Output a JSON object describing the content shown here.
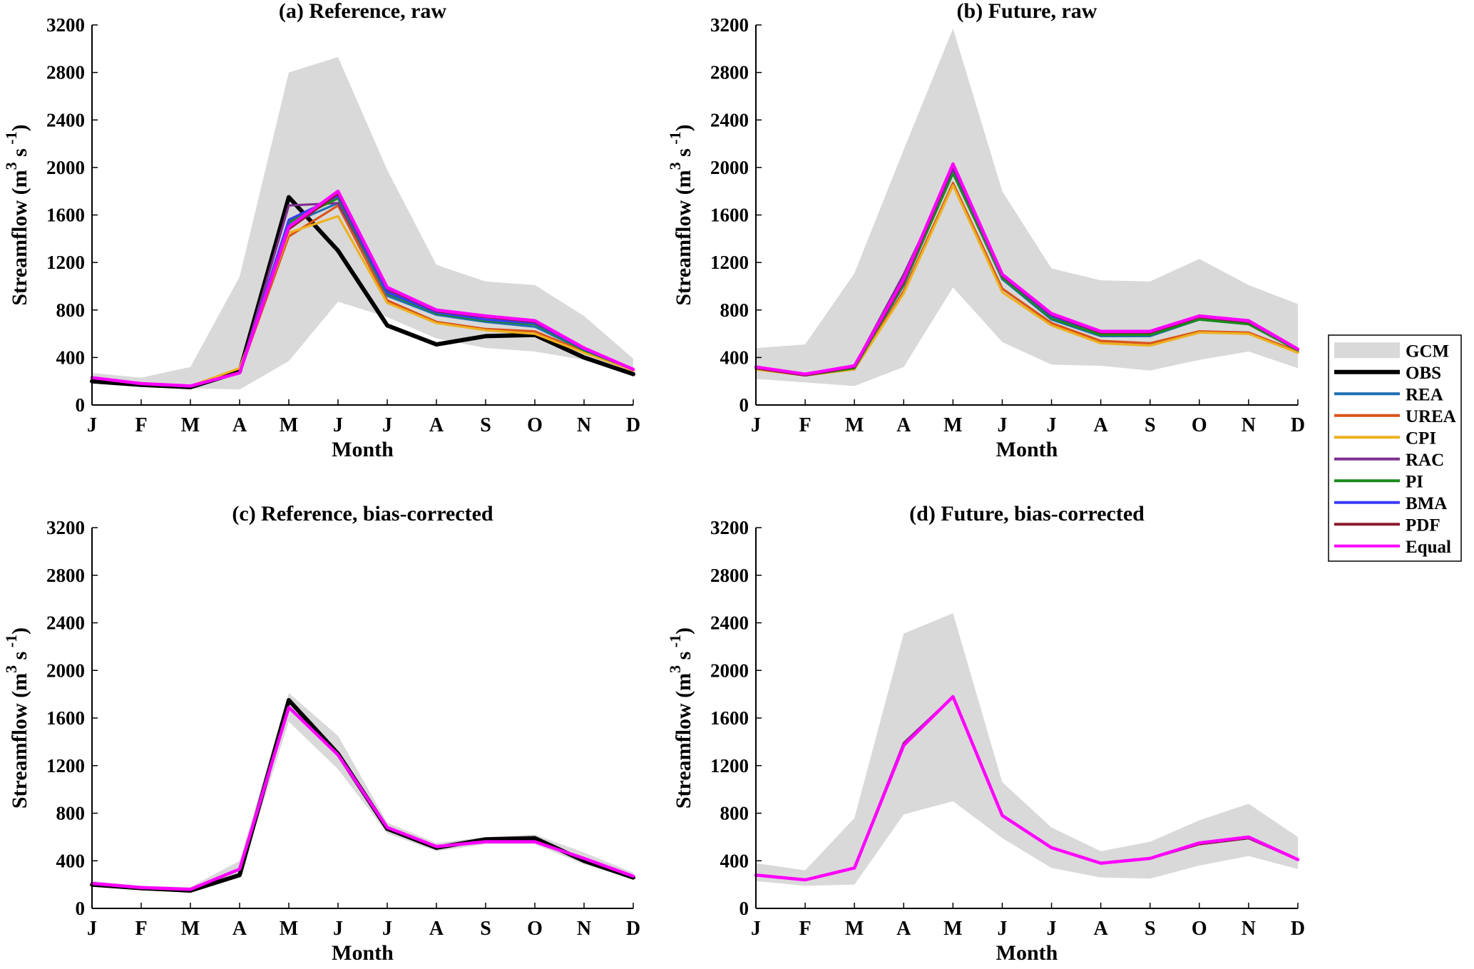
{
  "chart_data": [
    {
      "type": "line",
      "title": "(a) Reference, raw",
      "xlabel": "Month",
      "ylabel": "Streamflow",
      "yunit": {
        "base": "m",
        "exp1": "3",
        "mid": "s",
        "exp2": "-1"
      },
      "categories": [
        "J",
        "F",
        "M",
        "A",
        "M",
        "J",
        "J",
        "A",
        "S",
        "O",
        "N",
        "D"
      ],
      "ylim": [
        0,
        3200
      ],
      "yticks": [
        0,
        400,
        800,
        1200,
        1600,
        2000,
        2400,
        2800,
        3200
      ],
      "gcm_band": {
        "name": "GCM",
        "upper": [
          270,
          230,
          320,
          1080,
          2800,
          2930,
          1980,
          1180,
          1040,
          1010,
          750,
          390
        ],
        "lower": [
          190,
          170,
          140,
          130,
          370,
          870,
          740,
          560,
          480,
          450,
          380,
          250
        ]
      },
      "series": [
        {
          "name": "OBS",
          "values": [
            200,
            170,
            150,
            280,
            1750,
            1300,
            670,
            510,
            580,
            590,
            400,
            260
          ]
        },
        {
          "name": "REA",
          "values": [
            230,
            180,
            160,
            270,
            1520,
            1700,
            920,
            760,
            700,
            660,
            460,
            290
          ]
        },
        {
          "name": "UREA",
          "values": [
            230,
            180,
            160,
            270,
            1420,
            1680,
            880,
            700,
            640,
            620,
            450,
            290
          ]
        },
        {
          "name": "CPI",
          "values": [
            230,
            180,
            160,
            310,
            1450,
            1590,
            860,
            690,
            630,
            600,
            440,
            290
          ]
        },
        {
          "name": "RAC",
          "values": [
            230,
            180,
            160,
            270,
            1680,
            1700,
            960,
            780,
            720,
            690,
            470,
            300
          ]
        },
        {
          "name": "PI",
          "values": [
            230,
            180,
            160,
            270,
            1540,
            1740,
            940,
            770,
            710,
            680,
            460,
            300
          ]
        },
        {
          "name": "BMA",
          "values": [
            230,
            180,
            160,
            270,
            1560,
            1760,
            950,
            780,
            720,
            690,
            470,
            300
          ]
        },
        {
          "name": "PDF",
          "values": [
            230,
            180,
            160,
            270,
            1480,
            1780,
            980,
            790,
            740,
            700,
            480,
            300
          ]
        },
        {
          "name": "Equal",
          "values": [
            230,
            180,
            160,
            270,
            1500,
            1800,
            990,
            800,
            750,
            710,
            480,
            300
          ]
        }
      ]
    },
    {
      "type": "line",
      "title": "(b) Future, raw",
      "xlabel": "Month",
      "ylabel": "Streamflow",
      "yunit": {
        "base": "m",
        "exp1": "3",
        "mid": "s",
        "exp2": "-1"
      },
      "categories": [
        "J",
        "F",
        "M",
        "A",
        "M",
        "J",
        "J",
        "A",
        "S",
        "O",
        "N",
        "D"
      ],
      "ylim": [
        0,
        3200
      ],
      "yticks": [
        0,
        400,
        800,
        1200,
        1600,
        2000,
        2400,
        2800,
        3200
      ],
      "gcm_band": {
        "name": "GCM",
        "upper": [
          480,
          510,
          1110,
          2150,
          3170,
          1800,
          1150,
          1050,
          1040,
          1230,
          1010,
          850
        ],
        "lower": [
          220,
          190,
          160,
          320,
          990,
          530,
          340,
          330,
          290,
          380,
          450,
          310
        ]
      },
      "series": [
        {
          "name": "OBS",
          "values": [
            null,
            null,
            null,
            null,
            null,
            null,
            null,
            null,
            null,
            null,
            null,
            null
          ]
        },
        {
          "name": "REA",
          "values": [
            310,
            250,
            310,
            1010,
            1960,
            1060,
            720,
            580,
            580,
            720,
            680,
            460
          ]
        },
        {
          "name": "UREA",
          "values": [
            300,
            250,
            300,
            960,
            1870,
            980,
            690,
            540,
            520,
            620,
            610,
            450
          ]
        },
        {
          "name": "CPI",
          "values": [
            300,
            250,
            300,
            940,
            1850,
            950,
            670,
            520,
            500,
            610,
            600,
            440
          ]
        },
        {
          "name": "RAC",
          "values": [
            310,
            250,
            330,
            1100,
            1980,
            1080,
            750,
            600,
            600,
            730,
            690,
            470
          ]
        },
        {
          "name": "PI",
          "values": [
            310,
            250,
            310,
            1020,
            1950,
            1070,
            730,
            590,
            590,
            720,
            680,
            460
          ]
        },
        {
          "name": "BMA",
          "values": [
            310,
            250,
            320,
            1050,
            2000,
            1090,
            750,
            610,
            610,
            740,
            700,
            470
          ]
        },
        {
          "name": "PDF",
          "values": [
            310,
            250,
            320,
            1040,
            2010,
            1090,
            760,
            610,
            610,
            740,
            700,
            470
          ]
        },
        {
          "name": "Equal",
          "values": [
            320,
            260,
            330,
            1060,
            2030,
            1100,
            770,
            620,
            620,
            750,
            710,
            470
          ]
        }
      ]
    },
    {
      "type": "line",
      "title": "(c) Reference, bias-corrected",
      "xlabel": "Month",
      "ylabel": "Streamflow",
      "yunit": {
        "base": "m",
        "exp1": "3",
        "mid": "s",
        "exp2": "-1"
      },
      "categories": [
        "J",
        "F",
        "M",
        "A",
        "M",
        "J",
        "J",
        "A",
        "S",
        "O",
        "N",
        "D"
      ],
      "ylim": [
        0,
        3200
      ],
      "yticks": [
        0,
        400,
        800,
        1200,
        1600,
        2000,
        2400,
        2800,
        3200
      ],
      "gcm_band": {
        "name": "GCM",
        "upper": [
          230,
          190,
          180,
          400,
          1810,
          1450,
          720,
          550,
          600,
          620,
          470,
          300
        ],
        "lower": [
          180,
          160,
          140,
          260,
          1570,
          1170,
          630,
          480,
          540,
          540,
          370,
          250
        ]
      },
      "series": [
        {
          "name": "OBS",
          "values": [
            200,
            170,
            150,
            280,
            1750,
            1300,
            670,
            510,
            580,
            590,
            400,
            260
          ]
        },
        {
          "name": "REA",
          "values": [
            210,
            175,
            160,
            330,
            1690,
            1290,
            680,
            520,
            560,
            560,
            420,
            270
          ]
        },
        {
          "name": "UREA",
          "values": [
            210,
            175,
            160,
            330,
            1690,
            1290,
            680,
            520,
            560,
            560,
            420,
            270
          ]
        },
        {
          "name": "CPI",
          "values": [
            210,
            175,
            160,
            330,
            1690,
            1290,
            680,
            520,
            560,
            560,
            420,
            270
          ]
        },
        {
          "name": "RAC",
          "values": [
            210,
            175,
            160,
            330,
            1690,
            1290,
            680,
            520,
            560,
            560,
            420,
            270
          ]
        },
        {
          "name": "PI",
          "values": [
            210,
            175,
            160,
            330,
            1690,
            1290,
            680,
            520,
            560,
            560,
            420,
            270
          ]
        },
        {
          "name": "BMA",
          "values": [
            210,
            175,
            160,
            330,
            1690,
            1290,
            680,
            520,
            560,
            560,
            420,
            270
          ]
        },
        {
          "name": "PDF",
          "values": [
            210,
            175,
            160,
            330,
            1690,
            1290,
            680,
            520,
            560,
            560,
            420,
            270
          ]
        },
        {
          "name": "Equal",
          "values": [
            210,
            175,
            160,
            330,
            1690,
            1290,
            680,
            520,
            560,
            560,
            420,
            270
          ]
        }
      ]
    },
    {
      "type": "line",
      "title": "(d) Future, bias-corrected",
      "xlabel": "Month",
      "ylabel": "Streamflow",
      "yunit": {
        "base": "m",
        "exp1": "3",
        "mid": "s",
        "exp2": "-1"
      },
      "categories": [
        "J",
        "F",
        "M",
        "A",
        "M",
        "J",
        "J",
        "A",
        "S",
        "O",
        "N",
        "D"
      ],
      "ylim": [
        0,
        3200
      ],
      "yticks": [
        0,
        400,
        800,
        1200,
        1600,
        2000,
        2400,
        2800,
        3200
      ],
      "gcm_band": {
        "name": "GCM",
        "upper": [
          380,
          320,
          760,
          2310,
          2480,
          1060,
          680,
          480,
          560,
          740,
          880,
          600
        ],
        "lower": [
          230,
          190,
          200,
          790,
          900,
          590,
          340,
          260,
          250,
          360,
          440,
          330
        ]
      },
      "series": [
        {
          "name": "OBS",
          "values": [
            null,
            null,
            null,
            null,
            null,
            null,
            null,
            null,
            null,
            null,
            null,
            null
          ]
        },
        {
          "name": "REA",
          "values": [
            280,
            240,
            340,
            1380,
            1780,
            780,
            510,
            380,
            420,
            540,
            590,
            410
          ]
        },
        {
          "name": "UREA",
          "values": [
            280,
            240,
            340,
            1380,
            1780,
            780,
            510,
            380,
            420,
            540,
            590,
            410
          ]
        },
        {
          "name": "CPI",
          "values": [
            280,
            240,
            340,
            1380,
            1780,
            780,
            510,
            380,
            420,
            540,
            590,
            410
          ]
        },
        {
          "name": "RAC",
          "values": [
            280,
            240,
            340,
            1390,
            1780,
            780,
            510,
            380,
            420,
            550,
            600,
            410
          ]
        },
        {
          "name": "PI",
          "values": [
            280,
            240,
            340,
            1380,
            1780,
            780,
            510,
            380,
            420,
            540,
            590,
            410
          ]
        },
        {
          "name": "BMA",
          "values": [
            280,
            240,
            340,
            1380,
            1780,
            780,
            510,
            380,
            420,
            540,
            590,
            410
          ]
        },
        {
          "name": "PDF",
          "values": [
            280,
            240,
            340,
            1380,
            1780,
            780,
            510,
            380,
            420,
            540,
            590,
            410
          ]
        },
        {
          "name": "Equal",
          "values": [
            280,
            240,
            340,
            1370,
            1780,
            780,
            510,
            380,
            420,
            550,
            600,
            410
          ]
        }
      ]
    }
  ],
  "legend": {
    "items": [
      {
        "name": "GCM",
        "color": "#d9d9d9",
        "kind": "band"
      },
      {
        "name": "OBS",
        "color": "#000000",
        "kind": "line"
      },
      {
        "name": "REA",
        "color": "#1f6fb4",
        "kind": "line"
      },
      {
        "name": "UREA",
        "color": "#d95319",
        "kind": "line"
      },
      {
        "name": "CPI",
        "color": "#edb120",
        "kind": "line"
      },
      {
        "name": "RAC",
        "color": "#7e2f8e",
        "kind": "line"
      },
      {
        "name": "PI",
        "color": "#1a8a1a",
        "kind": "line"
      },
      {
        "name": "BMA",
        "color": "#3b3bff",
        "kind": "line"
      },
      {
        "name": "PDF",
        "color": "#8b1a2b",
        "kind": "line"
      },
      {
        "name": "Equal",
        "color": "#ff00ff",
        "kind": "line"
      }
    ]
  }
}
